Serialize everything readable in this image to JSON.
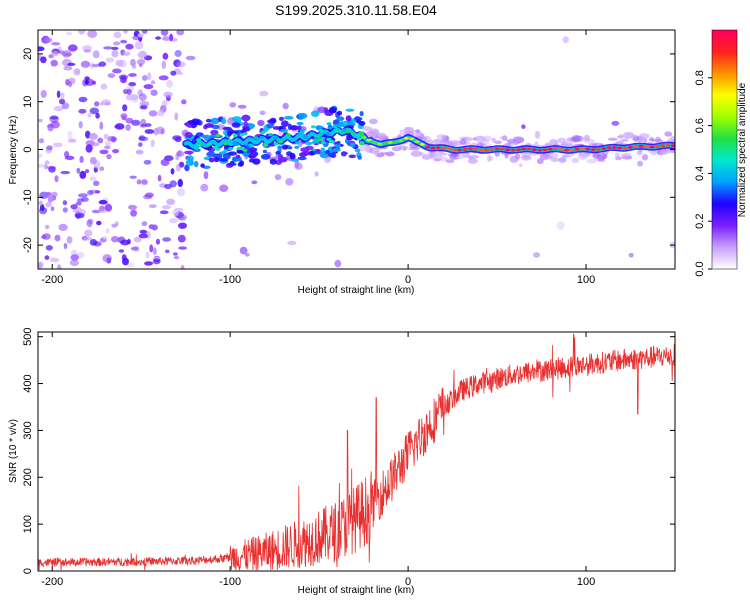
{
  "title": "S199.2025.310.11.58.E04",
  "chart_data": [
    {
      "type": "heatmap",
      "name": "spectrogram",
      "xlabel": "Height of straight line (km)",
      "ylabel": "Frequency (Hz)",
      "xlim": [
        -208,
        150
      ],
      "ylim": [
        -25,
        25
      ],
      "xticks": [
        -200,
        -100,
        0,
        100
      ],
      "yticks": [
        -20,
        -10,
        0,
        10,
        20
      ],
      "colorbar": {
        "label": "Normalized spectral amplitude",
        "range": [
          0,
          1
        ],
        "ticks": [
          "0.0",
          "0.2",
          "0.4",
          "0.6",
          "0.8"
        ],
        "tick_values": [
          0,
          0.2,
          0.4,
          0.6,
          0.8
        ],
        "colors": [
          "#ffffff",
          "#c8a0ff",
          "#7a20ff",
          "#2000ff",
          "#00a0ff",
          "#00e8d0",
          "#20e040",
          "#a0ff00",
          "#ffff00",
          "#ff9000",
          "#ff2020",
          "#ff0060"
        ]
      },
      "ridge": {
        "description_free": true,
        "points": [
          [
            -120,
            1.0
          ],
          [
            -100,
            1.5
          ],
          [
            -80,
            2.0
          ],
          [
            -60,
            2.5
          ],
          [
            -45,
            3.5
          ],
          [
            -35,
            4.0
          ],
          [
            -25,
            2.5
          ],
          [
            -15,
            1.0
          ],
          [
            -8,
            1.5
          ],
          [
            0,
            2.5
          ],
          [
            5,
            1.5
          ],
          [
            12,
            0.5
          ],
          [
            25,
            0.0
          ],
          [
            50,
            0.0
          ],
          [
            75,
            0.0
          ],
          [
            100,
            0.0
          ],
          [
            125,
            0.5
          ],
          [
            150,
            0.8
          ]
        ]
      }
    },
    {
      "type": "line",
      "name": "snr",
      "xlabel": "Height of straight line (km)",
      "ylabel": "SNR (10 * v/v)",
      "xlim": [
        -208,
        150
      ],
      "ylim": [
        0,
        510
      ],
      "xticks": [
        -200,
        -100,
        0,
        100
      ],
      "yticks": [
        0,
        100,
        200,
        300,
        400,
        500
      ],
      "color": "#e83030",
      "trend": {
        "x": [
          -208,
          -150,
          -120,
          -100,
          -80,
          -60,
          -40,
          -30,
          -20,
          -10,
          0,
          10,
          20,
          30,
          40,
          60,
          80,
          100,
          120,
          150
        ],
        "y": [
          18,
          20,
          22,
          28,
          40,
          60,
          85,
          110,
          140,
          190,
          250,
          300,
          350,
          385,
          400,
          420,
          430,
          440,
          450,
          460
        ]
      },
      "peaks": [
        {
          "x": -34,
          "y": 300
        },
        {
          "x": -18,
          "y": 370
        },
        {
          "x": 93,
          "y": 505
        },
        {
          "x": 129,
          "y": 335
        }
      ]
    }
  ]
}
